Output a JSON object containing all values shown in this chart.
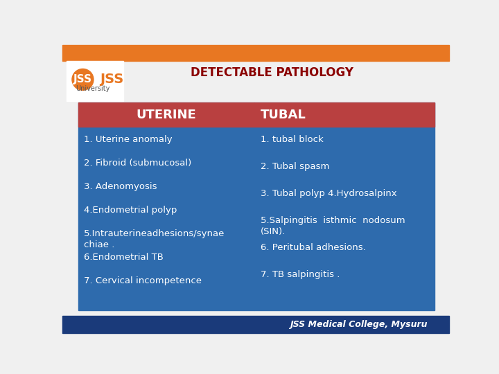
{
  "title": "DETECTABLE PATHOLOGY",
  "title_color": "#8B0000",
  "title_fontsize": 12,
  "bg_color": "#F0F0F0",
  "top_bar_color": "#E87722",
  "bottom_bar_color": "#1a3a7a",
  "header_bg_color": "#B94040",
  "cell_bg_color": "#2E6BAD",
  "header_text_color": "#FFFFFF",
  "cell_text_color": "#FFFFFF",
  "footer_text": "JSS Medical College, Mysuru",
  "footer_color": "#FFFFFF",
  "col1_header": "UTERINE",
  "col2_header": "TUBAL",
  "col1_items": [
    "1. Uterine anomaly",
    "2. Fibroid (submucosal)",
    "3. Adenomyosis",
    "4.Endometrial polyp",
    "5.Intrauterineadhesions/synae\nchiae .",
    "6.Endometrial TB",
    "7. Cervical incompetence"
  ],
  "col2_items": [
    "1. tubal block",
    "2. Tubal spasm",
    "3. Tubal polyp 4.Hydrosalpinx",
    "5.Salpingitis  isthmic  nodosum\n(SIN).",
    "6. Peritubal adhesions.",
    "7. TB salpingitis ."
  ]
}
